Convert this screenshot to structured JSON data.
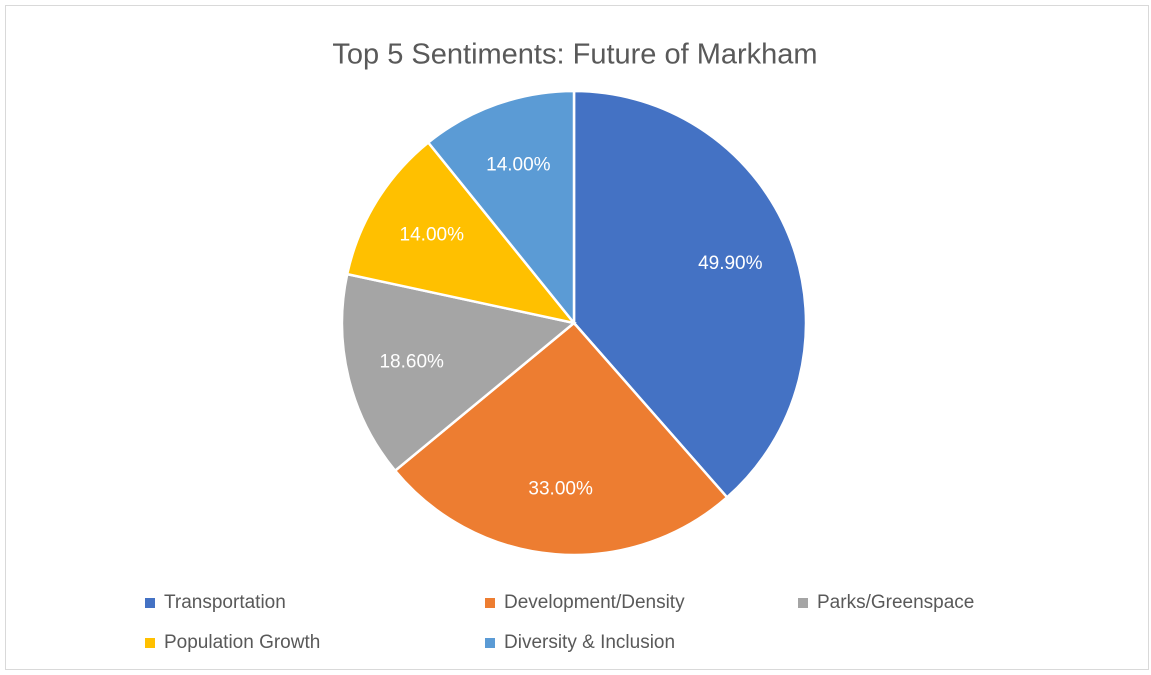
{
  "chart_data": {
    "type": "pie",
    "title": "Top 5 Sentiments: Future of Markham",
    "categories": [
      "Transportation",
      "Development/Density",
      "Parks/Greenspace",
      "Population Growth",
      "Diversity & Inclusion"
    ],
    "values": [
      49.9,
      33,
      18.6,
      14,
      14
    ],
    "value_labels": [
      "49.90%",
      "33.00%",
      "18.60%",
      "14.00%",
      "14.00%"
    ],
    "colors": [
      "#4472c4",
      "#ed7d31",
      "#a5a5a5",
      "#ffc000",
      "#5b9bd5"
    ],
    "legend": "bottom"
  }
}
